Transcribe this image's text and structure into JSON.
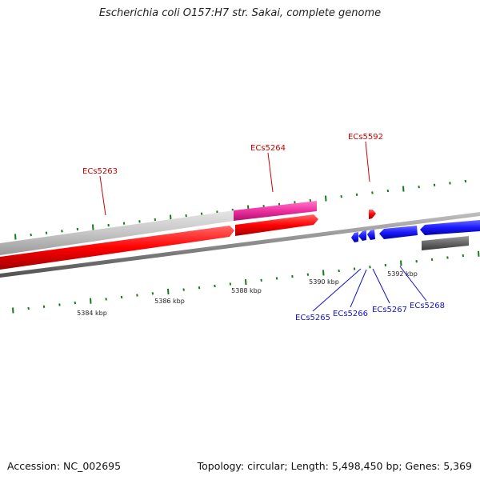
{
  "title": "Escherichia coli O157:H7 str. Sakai, complete genome",
  "footer": {
    "accession": "Accession: NC_002695",
    "topology": "Topology: circular; Length: 5,498,450 bp; Genes: 5,369"
  },
  "kbp_labels": [
    "5384 kbp",
    "5386 kbp",
    "5388 kbp",
    "5390 kbp",
    "5392 kbp"
  ],
  "gene_labels": {
    "forward": [
      "ECs5263",
      "ECs5264",
      "ECs5592"
    ],
    "reverse": [
      "ECs5265",
      "ECs5266",
      "ECs5267",
      "ECs5268"
    ]
  },
  "colors": {
    "cds": "#ff0000",
    "gene": "#c8c8c8",
    "highlight": "#ee2fa0",
    "reverse_cds": "#1a1aff",
    "reverse_gene": "#666666",
    "backbone": "#888888",
    "ticks": "#1a7a1a",
    "forward_label": "#cc0000",
    "reverse_label": "#1111cc"
  }
}
